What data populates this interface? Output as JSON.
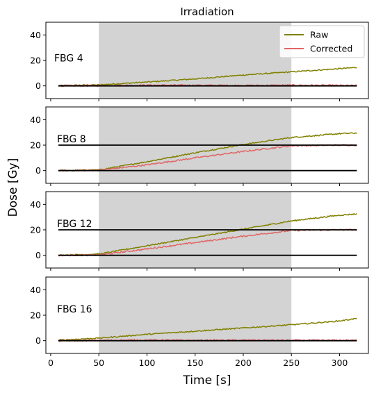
{
  "chart_data": {
    "type": "line",
    "title": "Irradiation",
    "xlabel": "Time [s]",
    "ylabel": "Dose [Gy]",
    "xlim": [
      -5,
      330
    ],
    "ylim": [
      -10,
      50
    ],
    "xticks": [
      0,
      50,
      100,
      150,
      200,
      250,
      300
    ],
    "yticks": [
      0,
      20,
      40
    ],
    "irradiation_window": [
      50,
      250
    ],
    "shade_color": "#d3d3d3",
    "legend": {
      "location": "top-right",
      "entries": [
        {
          "label": "Raw",
          "color": "#808000"
        },
        {
          "label": "Corrected",
          "color": "#e06666"
        }
      ]
    },
    "panels": [
      {
        "label": "FBG 4",
        "reference_lines": [
          0
        ],
        "series": [
          {
            "name": "Raw",
            "color": "#808000",
            "points": [
              [
                8,
                0.2
              ],
              [
                50,
                0.8
              ],
              [
                100,
                3
              ],
              [
                150,
                5.5
              ],
              [
                200,
                8.5
              ],
              [
                250,
                11
              ],
              [
                300,
                13.5
              ],
              [
                318,
                14.5
              ]
            ]
          },
          {
            "name": "Corrected",
            "color": "#e06666",
            "points": [
              [
                8,
                0
              ],
              [
                50,
                0.3
              ],
              [
                100,
                0.5
              ],
              [
                150,
                0.5
              ],
              [
                200,
                0.3
              ],
              [
                250,
                0.5
              ],
              [
                300,
                0.3
              ],
              [
                318,
                0.2
              ]
            ]
          }
        ]
      },
      {
        "label": "FBG 8",
        "reference_lines": [
          0,
          20
        ],
        "series": [
          {
            "name": "Raw",
            "color": "#808000",
            "points": [
              [
                8,
                0
              ],
              [
                50,
                0.5
              ],
              [
                100,
                7
              ],
              [
                150,
                14
              ],
              [
                200,
                20.5
              ],
              [
                250,
                26
              ],
              [
                300,
                29
              ],
              [
                318,
                29.5
              ]
            ]
          },
          {
            "name": "Corrected",
            "color": "#e06666",
            "points": [
              [
                8,
                0
              ],
              [
                50,
                0.3
              ],
              [
                100,
                4.5
              ],
              [
                150,
                10
              ],
              [
                200,
                15
              ],
              [
                250,
                19.5
              ],
              [
                300,
                20
              ],
              [
                318,
                20
              ]
            ]
          }
        ]
      },
      {
        "label": "FBG 12",
        "reference_lines": [
          0,
          20
        ],
        "series": [
          {
            "name": "Raw",
            "color": "#808000",
            "points": [
              [
                8,
                0
              ],
              [
                50,
                1
              ],
              [
                100,
                7.5
              ],
              [
                150,
                14
              ],
              [
                200,
                20.5
              ],
              [
                250,
                27
              ],
              [
                300,
                31.5
              ],
              [
                318,
                32.5
              ]
            ]
          },
          {
            "name": "Corrected",
            "color": "#e06666",
            "points": [
              [
                8,
                0
              ],
              [
                50,
                0.2
              ],
              [
                100,
                5
              ],
              [
                150,
                10
              ],
              [
                200,
                15
              ],
              [
                250,
                19.5
              ],
              [
                300,
                20
              ],
              [
                318,
                20
              ]
            ]
          }
        ]
      },
      {
        "label": "FBG 16",
        "reference_lines": [
          0
        ],
        "series": [
          {
            "name": "Raw",
            "color": "#808000",
            "points": [
              [
                8,
                0.5
              ],
              [
                50,
                2
              ],
              [
                100,
                5
              ],
              [
                150,
                7.5
              ],
              [
                200,
                10
              ],
              [
                250,
                12.5
              ],
              [
                300,
                15.5
              ],
              [
                318,
                17.5
              ]
            ]
          },
          {
            "name": "Corrected",
            "color": "#e06666",
            "points": [
              [
                8,
                0
              ],
              [
                50,
                0.3
              ],
              [
                100,
                0.5
              ],
              [
                150,
                0.3
              ],
              [
                200,
                0.4
              ],
              [
                250,
                0.3
              ],
              [
                300,
                0.3
              ],
              [
                318,
                0.3
              ]
            ]
          }
        ]
      }
    ]
  }
}
